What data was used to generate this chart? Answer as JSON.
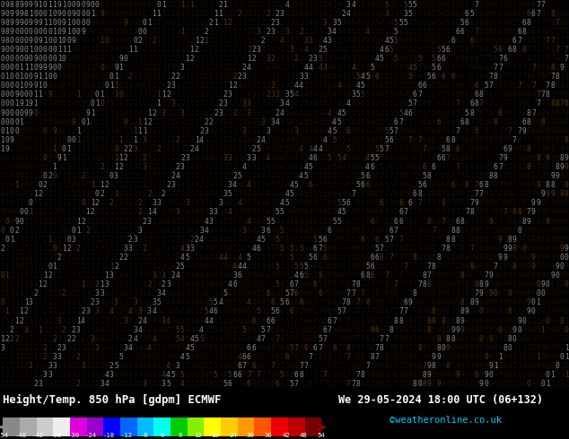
{
  "title": "Height/Temp. 850 hPa [gdpm] ECMWF",
  "datetime": "We 29-05-2024 18:00 UTC (06+132)",
  "credit": "©weatheronline.co.uk",
  "bg_color": "#f5b800",
  "colorbar_colors": [
    "#888888",
    "#aaaaaa",
    "#cccccc",
    "#eeeeee",
    "#dd00dd",
    "#9900cc",
    "#0000ff",
    "#0066ff",
    "#00bbff",
    "#00ffee",
    "#00cc00",
    "#88ee00",
    "#ffff00",
    "#ffcc00",
    "#ff9900",
    "#ff5500",
    "#ee0000",
    "#bb0000",
    "#770000"
  ],
  "colorbar_labels": [
    "-54",
    "-48",
    "-42",
    "-38",
    "-30",
    "-24",
    "-18",
    "-12",
    "-6",
    "0",
    "6",
    "12",
    "18",
    "24",
    "30",
    "36",
    "42",
    "48",
    "54"
  ],
  "num_rows": 43,
  "num_cols": 120,
  "char_fontsize": 5.8,
  "digit_color_main": "#1a0e00",
  "digit_color_alt": "#5a3a00",
  "contour_color": "#888888"
}
